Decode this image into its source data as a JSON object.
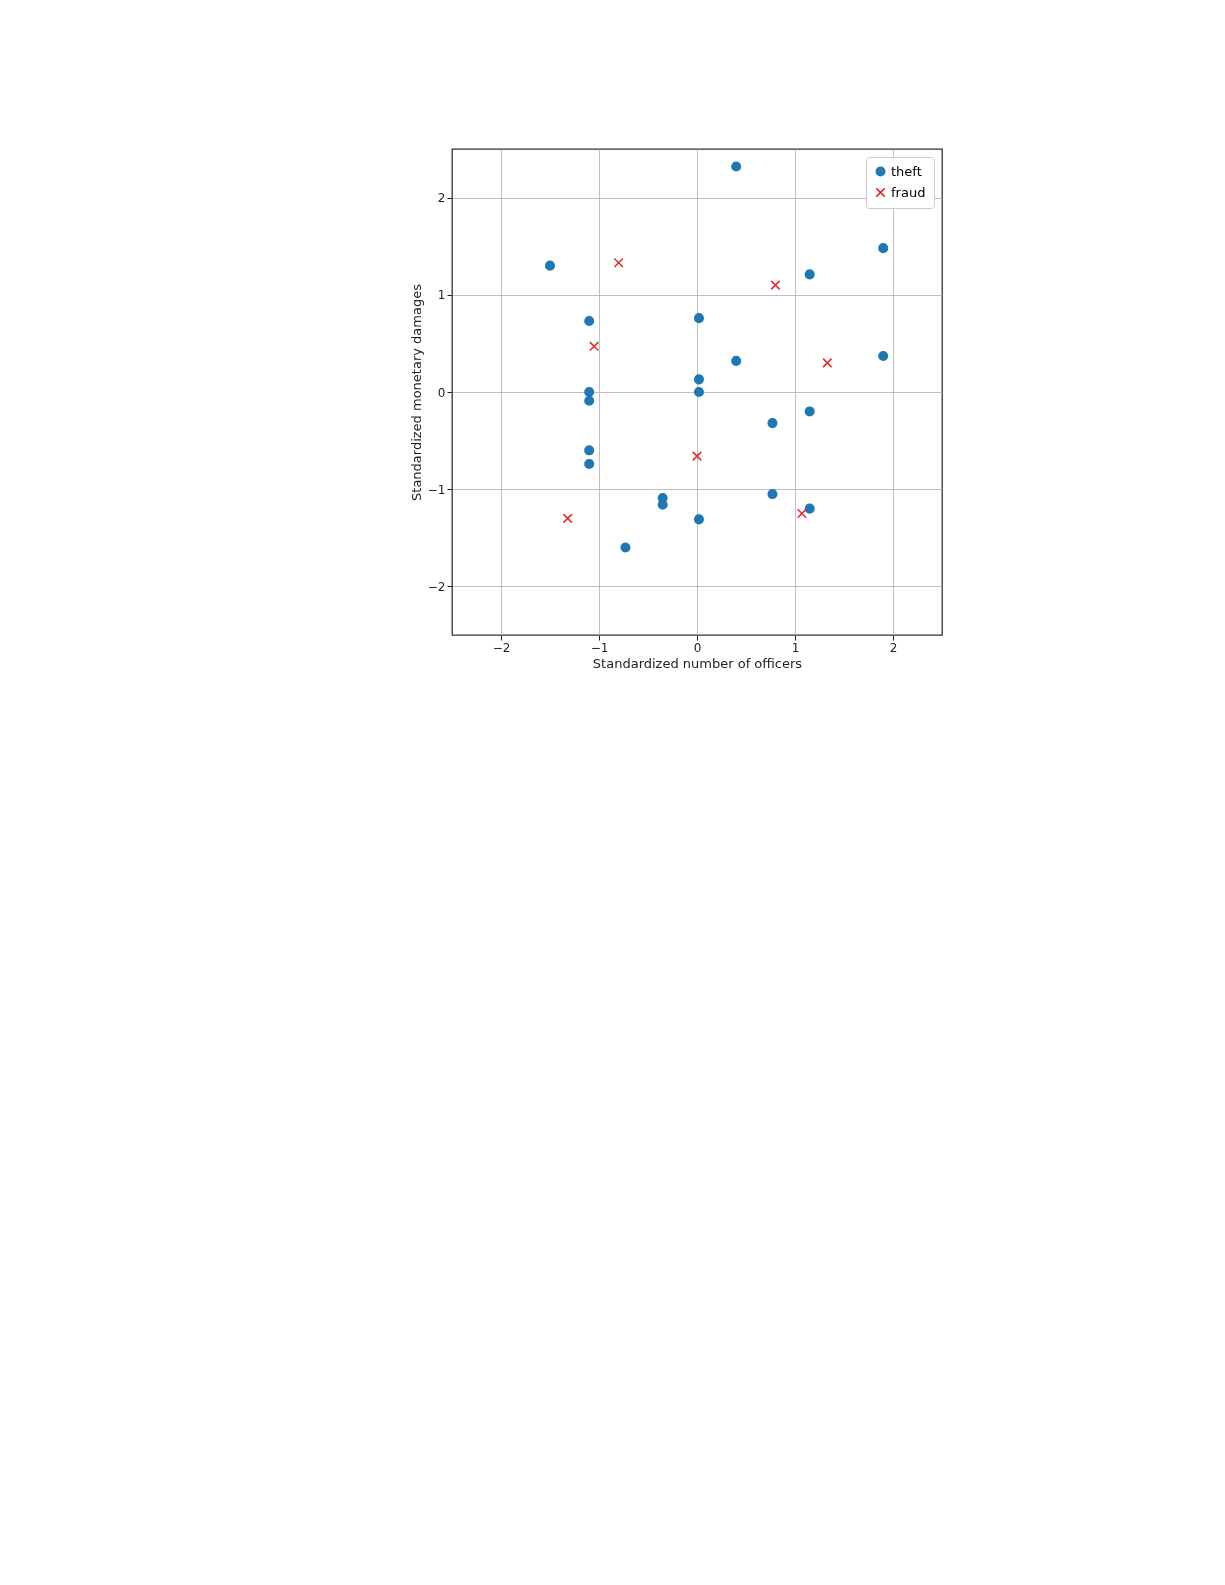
{
  "chart_data": {
    "type": "scatter",
    "xlabel": "Standardized number of officers",
    "ylabel": "Standardized monetary damages",
    "xlim": [
      -2.5,
      2.5
    ],
    "ylim": [
      -2.5,
      2.5
    ],
    "xticks": [
      -2,
      -1,
      0,
      1,
      2
    ],
    "yticks": [
      -2,
      -1,
      0,
      1,
      2
    ],
    "grid": true,
    "legend": "top right",
    "series": [
      {
        "name": "theft",
        "color": "#1f77b4",
        "marker": "circle",
        "x": [
          0.4,
          -1.5,
          1.15,
          1.9,
          -1.1,
          0.02,
          0.4,
          1.9,
          -1.1,
          -1.1,
          0.02,
          0.02,
          1.15,
          0.77,
          -1.1,
          -1.1,
          -0.35,
          -0.35,
          0.77,
          1.15,
          0.02,
          -0.73
        ],
        "values": [
          2.32,
          1.3,
          1.21,
          1.48,
          0.73,
          0.76,
          0.32,
          0.37,
          0.0,
          -0.09,
          0.13,
          0.0,
          -0.2,
          -0.32,
          -0.6,
          -0.74,
          -1.09,
          -1.16,
          -1.05,
          -1.2,
          -1.31,
          -1.6
        ]
      },
      {
        "name": "fraud",
        "color": "#e0302c",
        "marker": "cross",
        "x": [
          -0.8,
          0.8,
          -1.05,
          1.33,
          0.0,
          -1.32,
          1.07
        ],
        "values": [
          1.33,
          1.1,
          0.47,
          0.3,
          -0.66,
          -1.3,
          -1.25
        ]
      }
    ]
  }
}
